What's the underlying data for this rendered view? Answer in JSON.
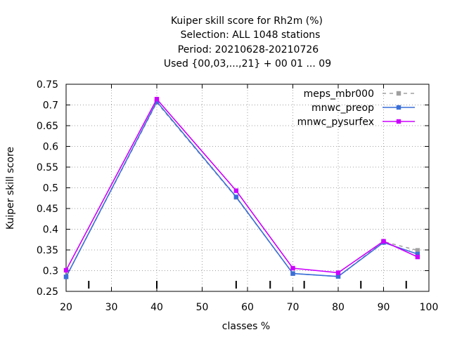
{
  "chart_data": {
    "type": "line",
    "title_lines": [
      "Kuiper skill score  for Rh2m (%)",
      "Selection: ALL    1048 stations",
      "Period: 20210628-20210726",
      "Used {00,03,...,21} + 00 01 ... 09"
    ],
    "xlabel": "classes %",
    "ylabel": "Kuiper skill score",
    "xlim": [
      20,
      100
    ],
    "ylim": [
      0.25,
      0.75
    ],
    "xticks": [
      20,
      30,
      40,
      50,
      60,
      70,
      80,
      90,
      100
    ],
    "yticks": [
      "0.25",
      "0.3",
      "0.35",
      "0.4",
      "0.45",
      "0.5",
      "0.55",
      "0.6",
      "0.65",
      "0.7",
      "0.75"
    ],
    "class_marks_x": [
      25,
      40,
      57.5,
      65,
      72.5,
      85,
      95
    ],
    "grid": true,
    "legend_position": "top-right",
    "series": [
      {
        "name": "meps_mbr000",
        "color": "#a0a0a0",
        "dashed": true,
        "x": [
          20,
          40,
          57.5,
          70,
          80,
          90,
          97.5
        ],
        "y": [
          0.285,
          0.706,
          0.477,
          0.293,
          0.286,
          0.37,
          0.349
        ]
      },
      {
        "name": "mnwc_preop",
        "color": "#3a6fd8",
        "dashed": false,
        "x": [
          20,
          40,
          57.5,
          70,
          80,
          90,
          97.5
        ],
        "y": [
          0.285,
          0.708,
          0.478,
          0.293,
          0.286,
          0.368,
          0.34
        ]
      },
      {
        "name": "mnwc_pysurfex",
        "color": "#cc00ff",
        "dashed": false,
        "x": [
          20,
          40,
          57.5,
          70,
          80,
          90,
          97.5
        ],
        "y": [
          0.301,
          0.714,
          0.493,
          0.306,
          0.295,
          0.371,
          0.333
        ]
      }
    ]
  }
}
